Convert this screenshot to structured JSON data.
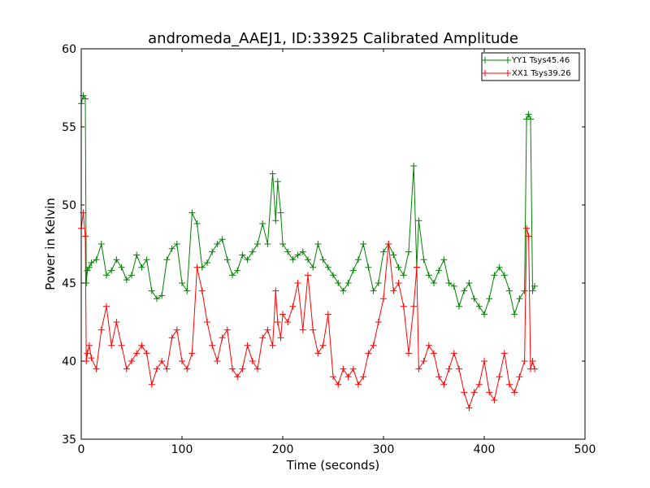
{
  "chart_data": {
    "type": "line",
    "title": "andromeda_AAEJ1, ID:33925 Calibrated Amplitude",
    "xlabel": "Time (seconds)",
    "ylabel": "Power in Kelvin",
    "xlim": [
      0,
      500
    ],
    "ylim": [
      35,
      60
    ],
    "xticks": [
      0,
      100,
      200,
      300,
      400,
      500
    ],
    "yticks": [
      35,
      40,
      45,
      50,
      55,
      60
    ],
    "xtick_labels": [
      "0",
      "100",
      "200",
      "300",
      "400",
      "500"
    ],
    "ytick_labels": [
      "35",
      "40",
      "45",
      "50",
      "55",
      "60"
    ],
    "grid": false,
    "legend_position": "top-right",
    "marker": "+",
    "series": [
      {
        "name": "YY1 Tsys45.46",
        "color": "#008000",
        "x": [
          0,
          2,
          4,
          5,
          6,
          8,
          10,
          15,
          20,
          25,
          30,
          35,
          40,
          45,
          50,
          55,
          60,
          65,
          70,
          75,
          80,
          85,
          90,
          95,
          100,
          105,
          110,
          115,
          120,
          125,
          130,
          135,
          140,
          145,
          150,
          155,
          160,
          165,
          170,
          175,
          180,
          185,
          190,
          193,
          195,
          198,
          200,
          205,
          210,
          215,
          220,
          225,
          230,
          235,
          240,
          245,
          250,
          255,
          260,
          265,
          270,
          275,
          280,
          285,
          290,
          295,
          300,
          305,
          310,
          315,
          320,
          325,
          330,
          333,
          335,
          340,
          345,
          350,
          355,
          360,
          365,
          370,
          375,
          380,
          385,
          390,
          395,
          400,
          405,
          410,
          415,
          420,
          425,
          430,
          435,
          440,
          442,
          444,
          446,
          448,
          450
        ],
        "y": [
          56.5,
          57.0,
          56.8,
          45.0,
          45.8,
          46.0,
          46.3,
          46.5,
          47.5,
          45.5,
          45.8,
          46.5,
          46.0,
          45.2,
          45.5,
          46.8,
          46.0,
          46.5,
          44.5,
          44.0,
          44.2,
          46.5,
          47.2,
          47.5,
          45.0,
          44.5,
          49.5,
          48.8,
          46.0,
          46.3,
          47.0,
          47.5,
          47.8,
          46.5,
          45.5,
          45.8,
          46.8,
          46.5,
          47.0,
          47.5,
          48.8,
          47.5,
          52.0,
          49.0,
          51.5,
          49.5,
          47.5,
          47.0,
          46.5,
          46.8,
          47.0,
          46.5,
          46.0,
          47.5,
          46.5,
          46.0,
          45.5,
          45.0,
          44.5,
          45.0,
          45.8,
          46.5,
          47.5,
          46.0,
          44.5,
          45.0,
          47.0,
          47.5,
          46.8,
          46.0,
          45.5,
          47.0,
          52.5,
          46.0,
          49.0,
          46.5,
          45.5,
          45.0,
          45.8,
          46.5,
          45.0,
          44.8,
          43.5,
          44.5,
          45.0,
          44.0,
          43.5,
          43.0,
          44.0,
          45.5,
          46.0,
          45.5,
          44.5,
          43.0,
          44.0,
          44.5,
          55.5,
          55.8,
          55.5,
          44.5,
          44.8
        ]
      },
      {
        "name": "XX1 Tsys39.26",
        "color": "#ff0000",
        "x": [
          0,
          2,
          4,
          5,
          6,
          8,
          10,
          15,
          20,
          25,
          30,
          35,
          40,
          45,
          50,
          55,
          60,
          65,
          70,
          75,
          80,
          85,
          90,
          95,
          100,
          105,
          110,
          115,
          120,
          125,
          130,
          135,
          140,
          145,
          150,
          155,
          160,
          165,
          170,
          175,
          180,
          185,
          190,
          193,
          195,
          198,
          200,
          205,
          210,
          215,
          220,
          225,
          230,
          235,
          240,
          245,
          250,
          255,
          260,
          265,
          270,
          275,
          280,
          285,
          290,
          295,
          300,
          305,
          310,
          315,
          320,
          325,
          330,
          333,
          335,
          340,
          345,
          350,
          355,
          360,
          365,
          370,
          375,
          380,
          385,
          390,
          395,
          400,
          405,
          410,
          415,
          420,
          425,
          430,
          435,
          440,
          442,
          444,
          446,
          448,
          450
        ],
        "y": [
          48.5,
          49.5,
          48.0,
          40.0,
          40.5,
          41.0,
          40.2,
          39.5,
          42.0,
          43.5,
          41.0,
          42.5,
          41.0,
          39.5,
          40.0,
          40.5,
          41.0,
          40.5,
          38.5,
          39.5,
          40.0,
          39.5,
          41.5,
          42.0,
          40.0,
          39.5,
          40.5,
          46.0,
          44.5,
          42.5,
          41.0,
          40.0,
          41.5,
          42.0,
          39.5,
          39.0,
          39.5,
          41.0,
          40.0,
          39.5,
          41.5,
          42.0,
          41.0,
          44.5,
          42.5,
          41.5,
          43.0,
          42.5,
          43.5,
          45.0,
          42.0,
          45.5,
          42.0,
          40.5,
          41.0,
          43.0,
          39.0,
          38.5,
          39.5,
          39.0,
          39.5,
          38.5,
          39.0,
          40.5,
          41.0,
          42.5,
          44.0,
          47.5,
          44.5,
          45.0,
          43.5,
          40.5,
          43.5,
          46.0,
          39.5,
          40.0,
          41.0,
          40.5,
          39.0,
          38.5,
          39.5,
          40.5,
          39.5,
          38.0,
          37.0,
          38.0,
          38.5,
          40.0,
          38.0,
          37.5,
          39.0,
          40.5,
          38.5,
          38.0,
          39.0,
          40.0,
          48.5,
          48.0,
          39.5,
          40.0,
          39.5
        ]
      }
    ]
  }
}
